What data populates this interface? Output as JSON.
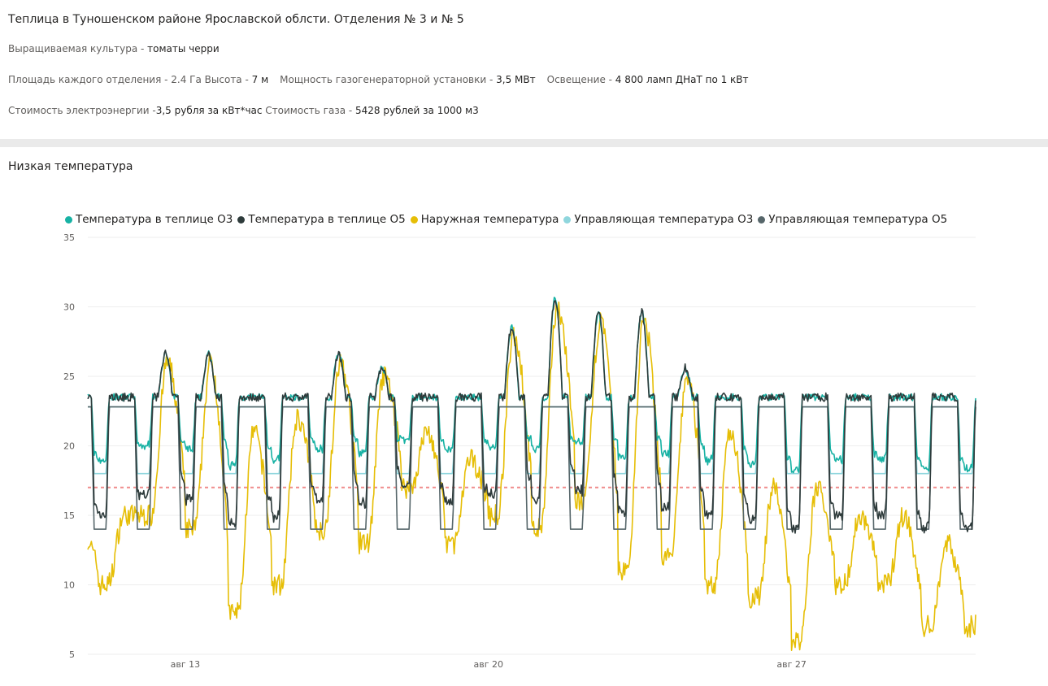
{
  "header": {
    "title": "Теплица в Туношенском районе Ярославской облсти. Отделения № 3 и № 5",
    "crop_label": "Выращиваемая культура - ",
    "crop_value": "томаты черри",
    "area_label": "Площадь каждого отделения - ",
    "area_value": "2.4 Га",
    "height_label": " Высота - ",
    "height_value": "7 м",
    "power_label": "Мощность газогенераторной установки - ",
    "power_value": "3,5 МВт",
    "light_label": "Освещение - ",
    "light_value": "4 800 ламп ДНаТ по 1 кВт",
    "elec_label": "Стоимость электроэнергии -",
    "elec_value": "3,5 рубля за кВт*час",
    "gas_label": " Стоимость газа - ",
    "gas_value": "5428 рублей за 1000 м3"
  },
  "panel_title": "Низкая температура",
  "colors": {
    "t_o3": "#17b2a4",
    "t_o5": "#2e3b3b",
    "outside": "#e6be06",
    "ctrl_o3": "#8fd6dd",
    "ctrl_o5": "#56666a",
    "threshold": "#f08c8c"
  },
  "chart_data": {
    "type": "line",
    "title": "",
    "xlabel": "",
    "ylabel": "",
    "ylim": [
      5,
      35
    ],
    "yticks": [
      "35",
      "30",
      "25",
      "20",
      "15",
      "10",
      "5"
    ],
    "xlim": [
      "2023-08-10 18:00",
      "2023-08-31 06:00"
    ],
    "xticks": [
      "авг 13",
      "авг 20",
      "авг 27"
    ],
    "legend_position": "top",
    "grid": true,
    "reference_line": 17,
    "day_peaks_outside": [
      14,
      15,
      26,
      26,
      21,
      22,
      26,
      25,
      21,
      19,
      28,
      30,
      29,
      29,
      25,
      21,
      17,
      17,
      15,
      15,
      13
    ],
    "night_lows_outside": [
      12,
      10,
      15,
      14,
      8,
      10,
      14,
      13,
      17,
      13,
      15,
      14,
      16,
      11,
      12,
      10,
      9,
      6,
      10,
      10,
      7
    ],
    "series": [
      {
        "name": "Температура в теплице О3",
        "key": "t_o3",
        "day_level": 23.5,
        "night_level_range": [
          18,
          20.5
        ]
      },
      {
        "name": "Температура в теплице О5",
        "key": "t_o5",
        "day_level": 23.5,
        "night_level_range": [
          14,
          18
        ]
      },
      {
        "name": "Наружная температура",
        "key": "outside"
      },
      {
        "name": "Управляющая температура О3",
        "key": "ctrl_o3",
        "day_level": 22.8,
        "night_level": 18
      },
      {
        "name": "Управляющая температура О5",
        "key": "ctrl_o5",
        "day_level": 22.8,
        "night_level": 14
      }
    ]
  }
}
